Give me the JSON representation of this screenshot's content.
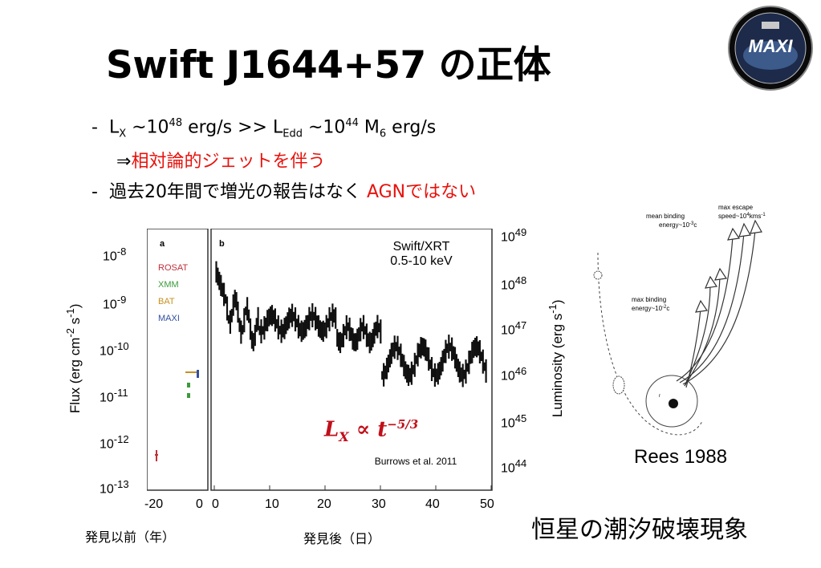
{
  "slide": {
    "title": "Swift J1644+57 の正体",
    "bullets": {
      "b1_dash": "-",
      "b1_lx": "L",
      "b1_lx_sub": "X",
      "b1_mid": " ~10",
      "b1_exp48": "48",
      "b1_rest": " erg/s >> L",
      "b1_edd_sub": "Edd",
      "b1_mid2": " ~10",
      "b1_exp44": "44",
      "b1_m": " M",
      "b1_m_sub": "6",
      "b1_end": " erg/s",
      "b2_arrow": "⇒",
      "b2_text": "相対論的ジェットを伴う",
      "b3_dash": "-",
      "b3_text": "過去20年間で増光の報告はなく",
      "b3_red": "AGNではない"
    },
    "figure_left": {
      "flux_ticks": [
        "10-8",
        "10-9",
        "10-10",
        "10-11",
        "10-12",
        "10-13"
      ],
      "flux_tick_base": "10",
      "flux_tick_exps": [
        "-8",
        "-9",
        "-10",
        "-11",
        "-12",
        "-13"
      ],
      "lum_tick_base": "10",
      "lum_tick_exps": [
        "49",
        "48",
        "47",
        "46",
        "45",
        "44"
      ],
      "flux_axis_title": "Flux (erg cm",
      "flux_axis_title_exp1": "-2",
      "flux_axis_title_mid": " s",
      "flux_axis_title_exp2": "-1",
      "flux_axis_title_end": ")",
      "lum_axis_title": "Luminosity (erg s",
      "lum_axis_title_exp": "-1",
      "lum_axis_title_end": ")",
      "x_ticks_before": [
        "-20",
        "0"
      ],
      "x_ticks_after": [
        "0",
        "10",
        "20",
        "30",
        "40",
        "50"
      ],
      "xlabel_before": "発見以前（年）",
      "xlabel_after": "発見後（日）",
      "panel_a": "a",
      "panel_b": "b",
      "legend": [
        {
          "label": "ROSAT",
          "color": "#c0303a"
        },
        {
          "label": "XMM",
          "color": "#3c9a3c"
        },
        {
          "label": "BAT",
          "color": "#c89020"
        },
        {
          "label": "MAXI",
          "color": "#3050a0"
        }
      ],
      "instrument_line1": "Swift/XRT",
      "instrument_line2": "0.5-10 keV",
      "formula": "L",
      "formula_sub": "X",
      "formula_rest": " ∝ t",
      "formula_exp": "−5/3",
      "citation": "Burrows et al. 2011",
      "formula_color": "#c0101a"
    },
    "figure_right": {
      "label_mean_binding": "mean binding",
      "label_mean_binding2": "energy~10",
      "label_mean_exp": "-3",
      "label_c2": "c",
      "label_max_escape": "max escape",
      "label_max_escape2": "speed~10",
      "label_escape_exp": "4",
      "label_kms": "kms",
      "label_kms_exp": "-1",
      "label_max_binding": "max binding",
      "label_max_binding2": "energy~10",
      "label_maxb_exp": "-2",
      "caption": "Rees 1988"
    },
    "conclusion": "恒星の潮汐破壊現象",
    "logo_text": "MAXI"
  }
}
